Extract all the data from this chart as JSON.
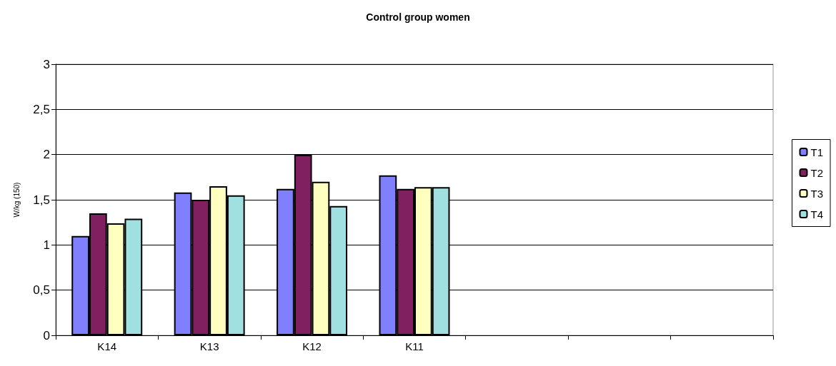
{
  "chart_data": {
    "type": "bar",
    "title": "Control group women",
    "ylabel": "W/kg (150)",
    "categories": [
      "K14",
      "K13",
      "K12",
      "K11",
      null,
      null,
      null
    ],
    "series": [
      {
        "name": "T1",
        "color": "#8080ff",
        "values": [
          1.1,
          1.58,
          1.62,
          1.77,
          null,
          null,
          null
        ]
      },
      {
        "name": "T2",
        "color": "#802060",
        "values": [
          1.35,
          1.5,
          2.0,
          1.62,
          null,
          null,
          null
        ]
      },
      {
        "name": "T3",
        "color": "#ffffc0",
        "values": [
          1.24,
          1.65,
          1.7,
          1.64,
          null,
          null,
          null
        ]
      },
      {
        "name": "T4",
        "color": "#a0e0e0",
        "values": [
          1.29,
          1.55,
          1.43,
          1.64,
          null,
          null,
          null
        ]
      }
    ],
    "ylim": [
      0,
      3
    ],
    "yticks": [
      0,
      {
        "value": 0.5,
        "label": "0,5"
      },
      1,
      {
        "value": 1.5,
        "label": "1,5"
      },
      2,
      {
        "value": 2.5,
        "label": "2,5"
      },
      3
    ],
    "grid": "y",
    "legend": "right"
  }
}
